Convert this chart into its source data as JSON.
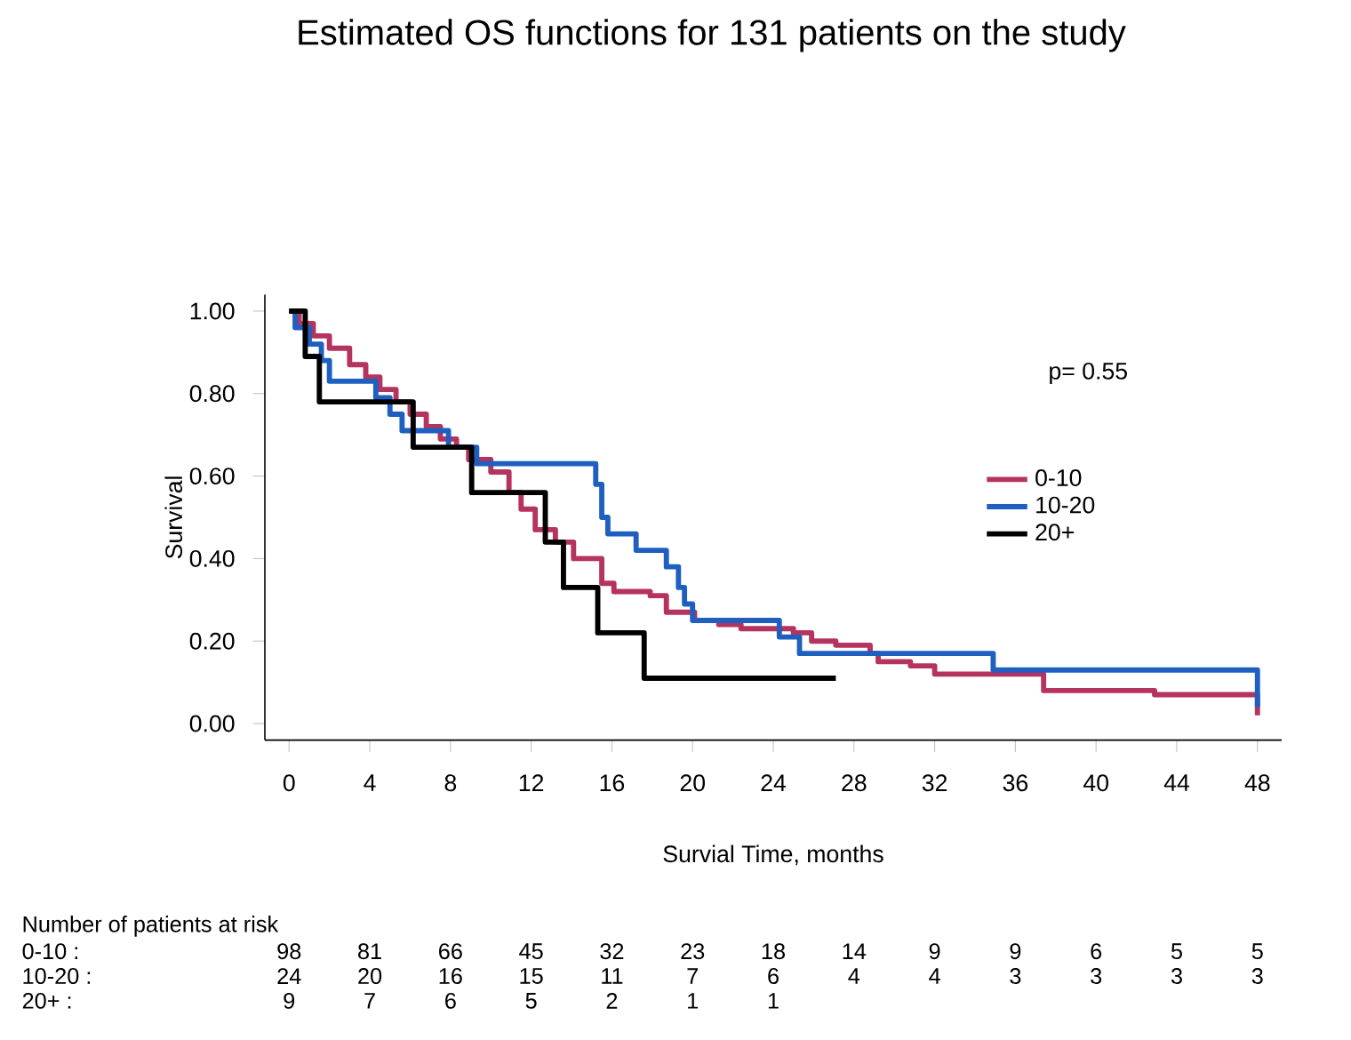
{
  "chart_data": {
    "type": "step",
    "title": "Estimated OS functions for 131 patients on the study",
    "xlabel": "Survial Time, months",
    "ylabel": "Survival",
    "xlim": [
      -1.2,
      49.2
    ],
    "ylim": [
      -0.04,
      1.04
    ],
    "xticks": [
      0,
      4,
      8,
      12,
      16,
      20,
      24,
      28,
      32,
      36,
      40,
      44,
      48
    ],
    "yticks": [
      {
        "value": 0,
        "label": "0.00"
      },
      {
        "value": 0.2,
        "label": "0.20"
      },
      {
        "value": 0.4,
        "label": "0.40"
      },
      {
        "value": 0.6,
        "label": "0.60"
      },
      {
        "value": 0.8,
        "label": "0.80"
      },
      {
        "value": 1,
        "label": "1.00"
      }
    ],
    "legend": "right",
    "grid": false,
    "marker": "none",
    "line_style": "solid",
    "series": [
      {
        "name": "0-10",
        "color": "#b5335f",
        "x": [
          0,
          0.5,
          1.2,
          2,
          3,
          3.8,
          4.5,
          5.3,
          6,
          6.8,
          7.5,
          8.3,
          8.9,
          10,
          10.9,
          11.5,
          12.2,
          13.2,
          14.1,
          15.5,
          16.1,
          17.9,
          18.7,
          20.1,
          21.3,
          22.4,
          25,
          25.9,
          27.1,
          28.8,
          29.2,
          30.8,
          32,
          37.4,
          42.9,
          48
        ],
        "values": [
          1,
          0.97,
          0.94,
          0.91,
          0.87,
          0.84,
          0.81,
          0.78,
          0.75,
          0.72,
          0.69,
          0.67,
          0.64,
          0.61,
          0.56,
          0.52,
          0.47,
          0.44,
          0.4,
          0.34,
          0.32,
          0.31,
          0.27,
          0.25,
          0.24,
          0.23,
          0.22,
          0.2,
          0.19,
          0.17,
          0.15,
          0.14,
          0.12,
          0.08,
          0.07,
          0.02
        ]
      },
      {
        "name": "10-20",
        "color": "#1f5fc0",
        "x": [
          0,
          0.3,
          1,
          1.6,
          2,
          4.3,
          5,
          5.6,
          7.9,
          9.3,
          15.2,
          15.5,
          15.8,
          17.2,
          18.7,
          19.3,
          19.6,
          20,
          24.3,
          25.3,
          34.9,
          48
        ],
        "values": [
          1,
          0.96,
          0.92,
          0.88,
          0.83,
          0.79,
          0.75,
          0.71,
          0.67,
          0.63,
          0.58,
          0.5,
          0.46,
          0.42,
          0.38,
          0.33,
          0.29,
          0.25,
          0.21,
          0.17,
          0.13,
          0.04
        ]
      },
      {
        "name": "20+",
        "color": "#000000",
        "x": [
          0,
          0.8,
          1.5,
          6.15,
          9.05,
          12.7,
          13.6,
          15.3,
          17.6,
          27.1
        ],
        "values": [
          1,
          0.89,
          0.78,
          0.67,
          0.56,
          0.44,
          0.33,
          0.22,
          0.11,
          0.11
        ]
      }
    ],
    "annotations": [
      "p= 0.55",
      "Number of patients at risk",
      "0-10 :",
      "10-20 :",
      "20+ :",
      "98",
      "81",
      "66",
      "45",
      "32",
      "23",
      "18",
      "14",
      "9",
      "9",
      "6",
      "5",
      "5",
      "24",
      "20",
      "16",
      "15",
      "11",
      "7",
      "6",
      "4",
      "4",
      "3",
      "3",
      "3",
      "3",
      "9",
      "7",
      "6",
      "5",
      "2",
      "1",
      "1"
    ]
  }
}
